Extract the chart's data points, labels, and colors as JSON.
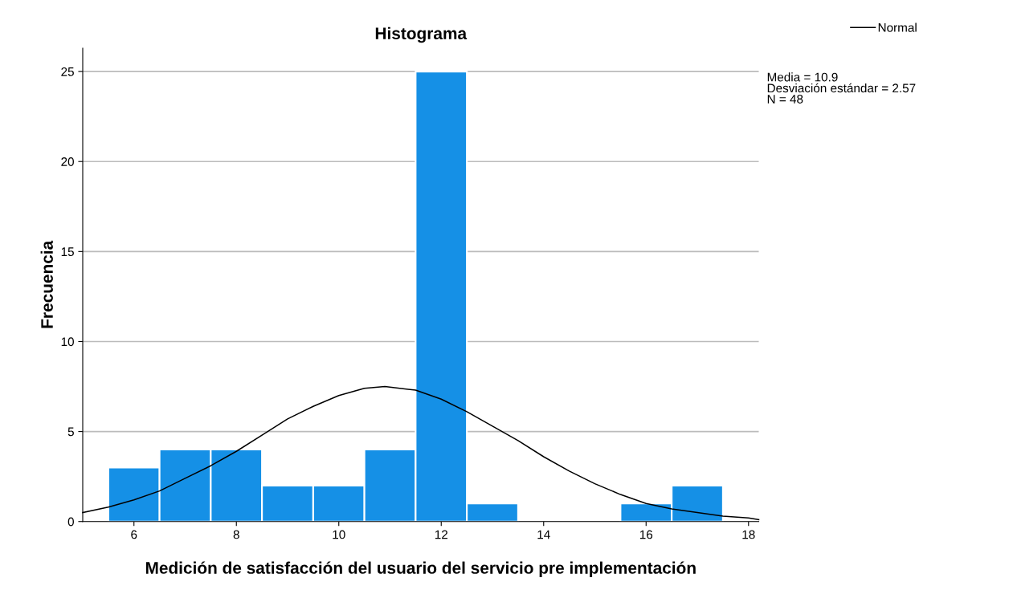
{
  "chart_data": {
    "type": "histogram",
    "title": "Histograma",
    "xlabel": "Medición de satisfacción del usuario del servicio pre implementación",
    "ylabel": "Frecuencia",
    "bins": [
      5.5,
      6.5,
      7.5,
      8.5,
      9.5,
      10.5,
      11.5,
      12.5,
      13.5,
      14.5,
      15.5,
      16.5,
      17.5
    ],
    "values": [
      3,
      4,
      4,
      2,
      2,
      4,
      25,
      1,
      0,
      0,
      1,
      2
    ],
    "color": "#1590e6",
    "series": [
      {
        "type": "line",
        "name": "Normal",
        "color": "#000000",
        "x": [
          5,
          5.5,
          6,
          6.5,
          7,
          7.5,
          8,
          8.5,
          9,
          9.5,
          10,
          10.5,
          10.9,
          11.5,
          12,
          12.5,
          13,
          13.5,
          14,
          14.5,
          15,
          15.5,
          16,
          16.5,
          17,
          17.5,
          18,
          18.2
        ],
        "values": [
          0.5,
          0.8,
          1.2,
          1.7,
          2.4,
          3.1,
          3.9,
          4.8,
          5.7,
          6.4,
          7.0,
          7.4,
          7.5,
          7.3,
          6.8,
          6.1,
          5.3,
          4.5,
          3.6,
          2.8,
          2.1,
          1.5,
          1.0,
          0.7,
          0.5,
          0.3,
          0.2,
          0.1
        ]
      }
    ],
    "annotations": [
      "Media = 10.9\nDesviación estándar = 2.57\nN = 48"
    ],
    "xlim": [
      5,
      18.2
    ],
    "xticks": [
      6,
      8,
      10,
      12,
      14,
      16,
      18
    ],
    "ylim": [
      0,
      26.3
    ],
    "yticks": [
      0,
      5,
      10,
      15,
      20,
      25
    ],
    "grid": "y",
    "legend": "top right",
    "marker": "none",
    "line_style": "solid"
  }
}
